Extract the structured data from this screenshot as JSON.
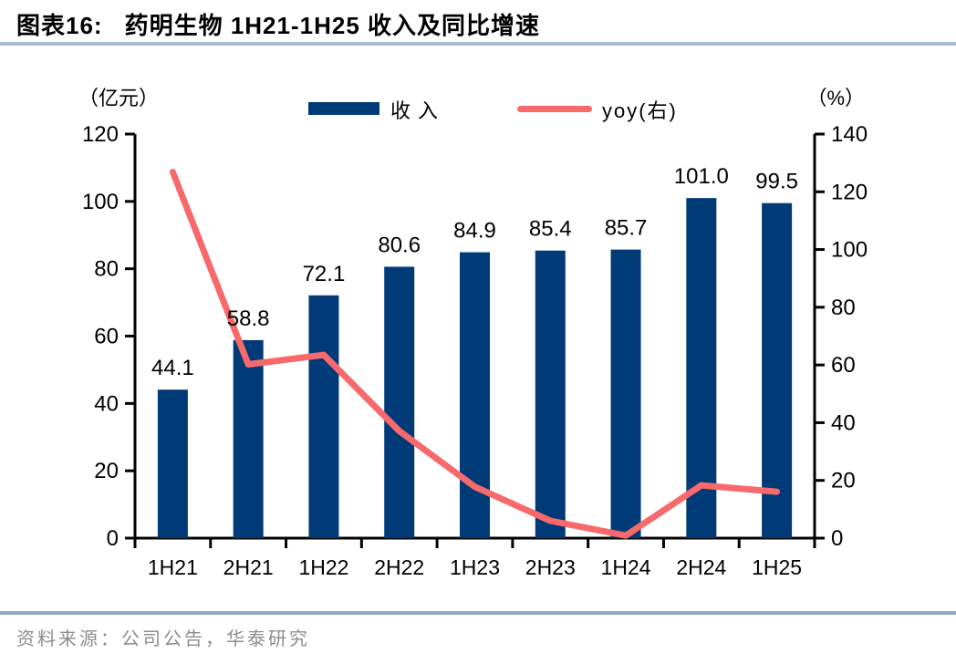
{
  "figure": {
    "label": "图表16:",
    "title": "药明生物 1H21-1H25 收入及同比增速",
    "source": "资料来源：公司公告，华泰研究"
  },
  "legend": {
    "bar_label": "收入",
    "line_label": "yoy(右)"
  },
  "colors": {
    "bar": "#003B78",
    "line": "#F8696B",
    "axis": "#000000",
    "title_rule": "#A6BBD4",
    "source_rule": "#92AAC9",
    "source_text": "#8C8C8C"
  },
  "chart_data": {
    "type": "bar+line",
    "title": "药明生物 1H21-1H25 收入及同比增速",
    "categories": [
      "1H21",
      "2H21",
      "1H22",
      "2H22",
      "1H23",
      "2H23",
      "1H24",
      "2H24",
      "1H25"
    ],
    "series": [
      {
        "name": "收入",
        "type": "bar",
        "axis": "left",
        "color": "#003B78",
        "values": [
          44.1,
          58.8,
          72.1,
          80.6,
          84.9,
          85.4,
          85.7,
          101.0,
          99.5
        ],
        "labels": [
          "44.1",
          "58.8",
          "72.1",
          "80.6",
          "84.9",
          "85.4",
          "85.7",
          "101.0",
          "99.5"
        ]
      },
      {
        "name": "yoy(右)",
        "type": "line",
        "axis": "right",
        "color": "#F8696B",
        "values": [
          126.9,
          60.2,
          63.5,
          37.1,
          17.8,
          6.0,
          0.9,
          18.3,
          16.1
        ]
      }
    ],
    "left_axis": {
      "title": "（亿元）",
      "min": 0,
      "max": 120,
      "step": 20,
      "ticks": [
        0,
        20,
        40,
        60,
        80,
        100,
        120
      ]
    },
    "right_axis": {
      "title": "（%）",
      "min": 0,
      "max": 140,
      "step": 20,
      "ticks": [
        0,
        20,
        40,
        60,
        80,
        100,
        120,
        140
      ]
    },
    "grid": false,
    "legend_position": "top-center"
  }
}
